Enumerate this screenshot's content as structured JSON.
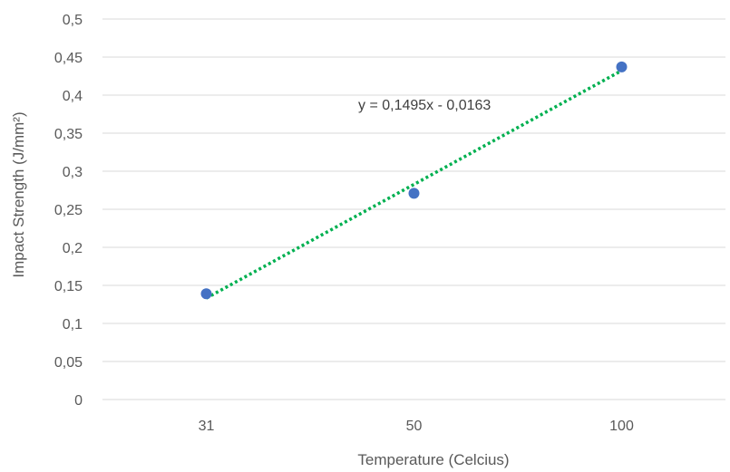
{
  "chart_data": {
    "type": "scatter",
    "title": "",
    "xlabel": "Temperature (Celcius)",
    "ylabel": "Impact Strength (J/mm²)",
    "categories": [
      "31",
      "50",
      "100"
    ],
    "series": [
      {
        "values": [
          0.139,
          0.271,
          0.437
        ],
        "color": "#4472c4"
      }
    ],
    "trendline": {
      "label": "y = 0,1495x - 0,0163",
      "slope": 0.1495,
      "intercept": -0.0163,
      "color": "#00b050",
      "style": "dotted"
    },
    "ylim": [
      0,
      0.5
    ],
    "yticks": [
      "0",
      "0,05",
      "0,1",
      "0,15",
      "0,2",
      "0,25",
      "0,3",
      "0,35",
      "0,4",
      "0,45",
      "0,5"
    ],
    "grid": true,
    "legend": "none"
  }
}
